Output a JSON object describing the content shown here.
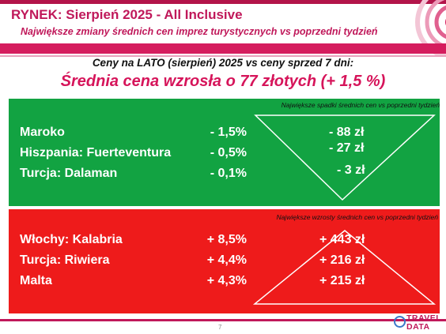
{
  "header": {
    "title": "RYNEK: Sierpień 2025 - All Inclusive",
    "subtitle": "Największe zmiany średnich cen imprez turystycznych vs poprzedni tydzień"
  },
  "context_line": "Ceny na LATO (sierpień) 2025 vs ceny sprzed 7 dni:",
  "headline": "Średnia cena wzrosła o 77 złotych (+ 1,5 %)",
  "decreases": {
    "note": "Największe spadki średnich cen vs poprzedni tydzień",
    "color": "#12a342",
    "rows": [
      {
        "destination": "Maroko",
        "percent": "- 1,5%",
        "amount": "- 88 zł"
      },
      {
        "destination": "Hiszpania: Fuerteventura",
        "percent": "- 0,5%",
        "amount": "- 27 zł"
      },
      {
        "destination": "Turcja: Dalaman",
        "percent": "- 0,1%",
        "amount": "- 3 zł"
      }
    ]
  },
  "increases": {
    "note": "Największe wzrosty średnich cen vs poprzedni tydzień",
    "color": "#ee1b1b",
    "rows": [
      {
        "destination": "Włochy: Kalabria",
        "percent": "+ 8,5%",
        "amount": "+ 443 zł"
      },
      {
        "destination": "Turcja: Riwiera",
        "percent": "+ 4,4%",
        "amount": "+ 216 zł"
      },
      {
        "destination": "Malta",
        "percent": "+ 4,3%",
        "amount": "+ 215 zł"
      }
    ]
  },
  "footer": {
    "page_number": "7",
    "logo_line1": "TRAVEL",
    "logo_line2": "DATA",
    "accent_color": "#c0185a"
  }
}
